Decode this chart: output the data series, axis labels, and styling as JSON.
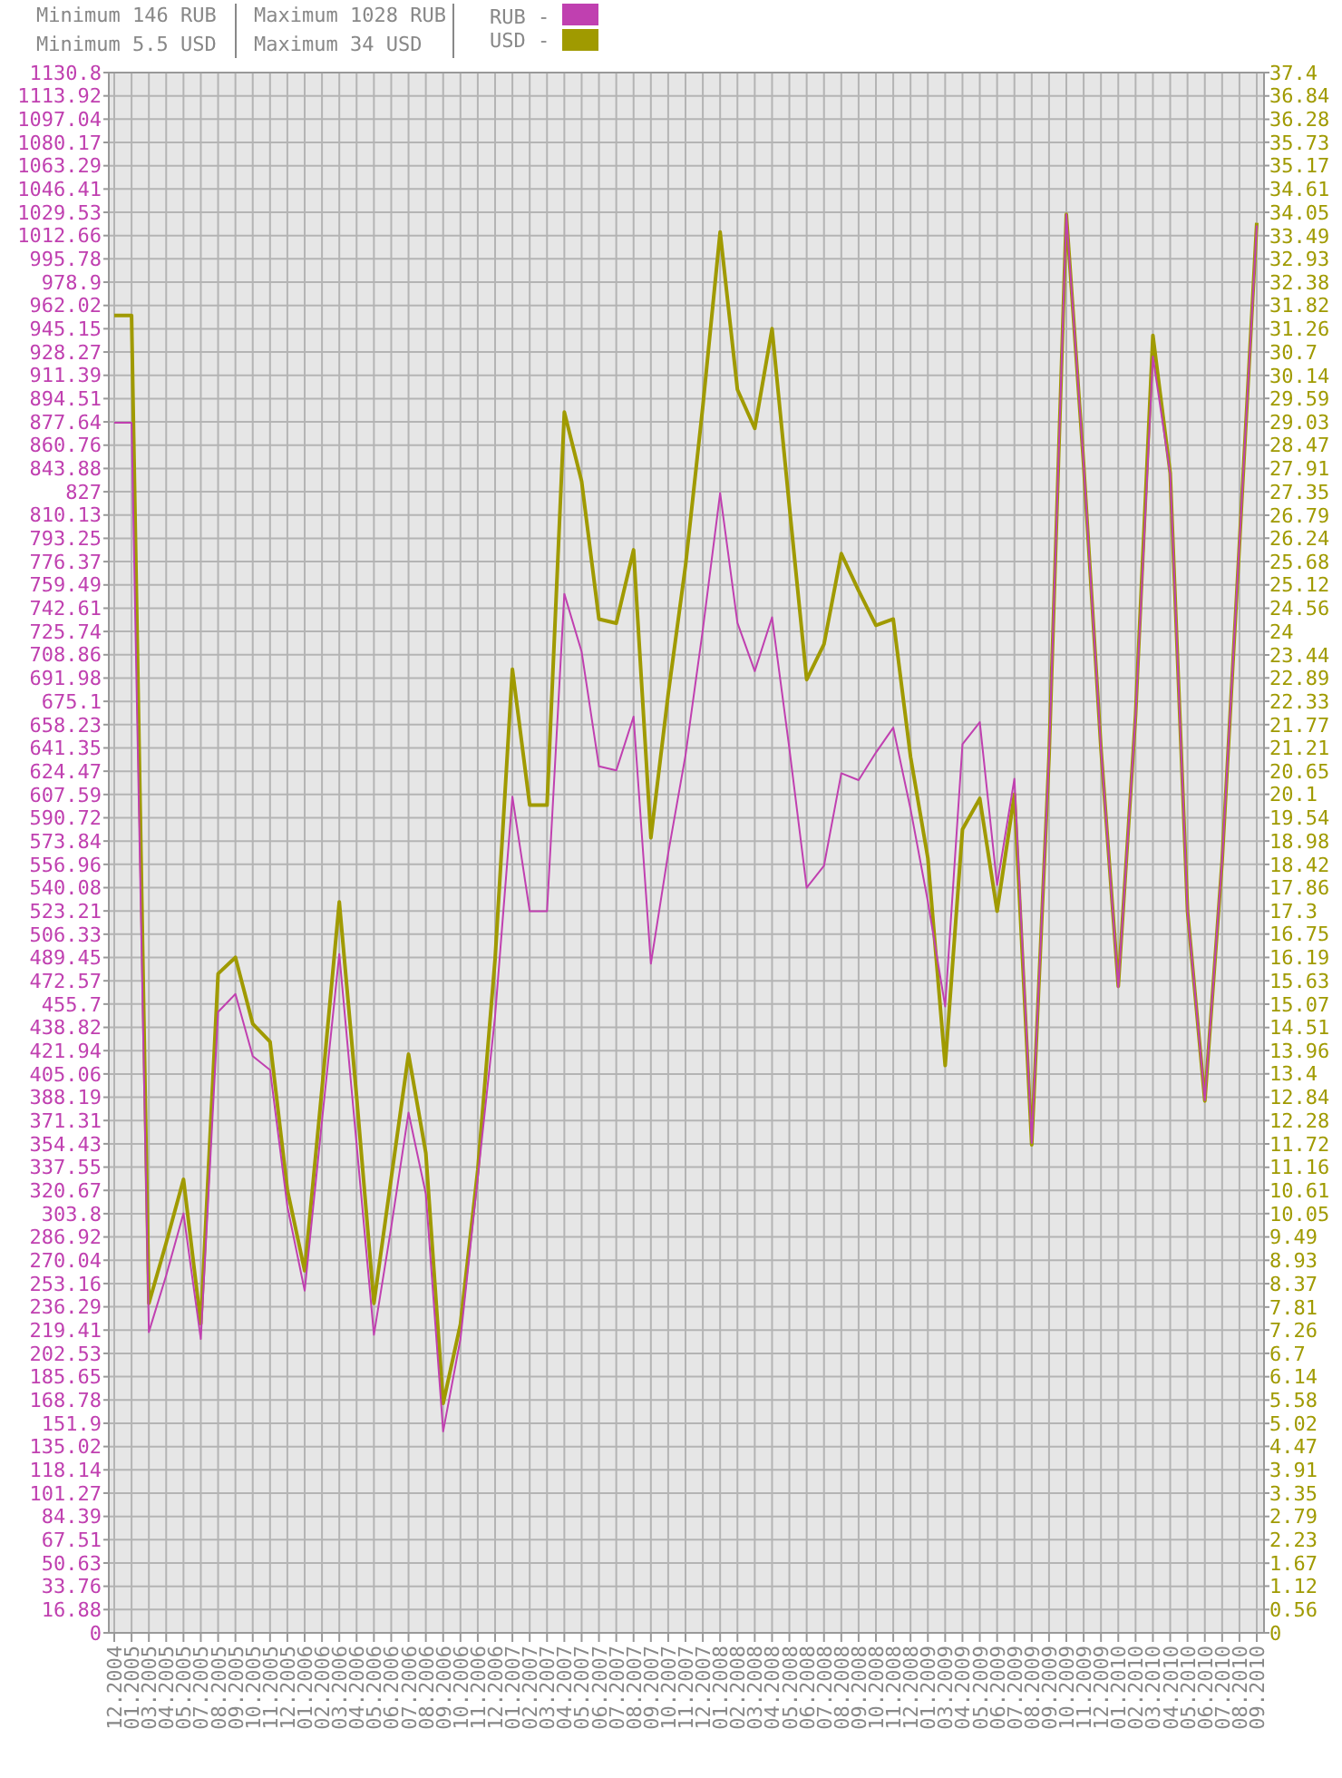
{
  "chart_data": {
    "type": "line",
    "categories": [
      "12.2004",
      "01.2005",
      "03.2005",
      "04.2005",
      "05.2005",
      "07.2005",
      "08.2005",
      "09.2005",
      "10.2005",
      "11.2005",
      "12.2005",
      "01.2006",
      "02.2006",
      "03.2006",
      "04.2006",
      "05.2006",
      "06.2006",
      "07.2006",
      "08.2006",
      "09.2006",
      "10.2006",
      "11.2006",
      "12.2006",
      "01.2007",
      "02.2007",
      "03.2007",
      "04.2007",
      "05.2007",
      "06.2007",
      "07.2007",
      "08.2007",
      "09.2007",
      "10.2007",
      "11.2007",
      "12.2007",
      "01.2008",
      "02.2008",
      "03.2008",
      "04.2008",
      "05.2008",
      "06.2008",
      "07.2008",
      "08.2008",
      "09.2008",
      "10.2008",
      "11.2008",
      "12.2008",
      "01.2009",
      "03.2009",
      "04.2009",
      "05.2009",
      "06.2009",
      "07.2009",
      "08.2009",
      "09.2009",
      "10.2009",
      "11.2009",
      "12.2009",
      "01.2010",
      "02.2010",
      "03.2010",
      "04.2010",
      "05.2010",
      "06.2010",
      "07.2010",
      "08.2010",
      "09.2010"
    ],
    "series": [
      {
        "name": "RUB -",
        "color": "#c040b0",
        "values": [
          877,
          877,
          218,
          259,
          304,
          213,
          450,
          463,
          418,
          408,
          309,
          248,
          371,
          492,
          354,
          216,
          294,
          377,
          318,
          146,
          213,
          330,
          447,
          606,
          523,
          523,
          753,
          711,
          628,
          625,
          664,
          485,
          565,
          636,
          727,
          826,
          732,
          697,
          736,
          641,
          540,
          556,
          623,
          618,
          638,
          656,
          597,
          530,
          454,
          644,
          660,
          542,
          619,
          355,
          635,
          1028,
          847,
          641,
          468,
          665,
          925,
          840,
          523,
          386,
          560,
          790,
          1020
        ]
      },
      {
        "name": "USD -",
        "color": "#a09a00",
        "axis": "y2",
        "values": [
          31.58,
          31.58,
          7.9,
          9.35,
          10.87,
          7.41,
          15.8,
          16.19,
          14.6,
          14.17,
          10.62,
          8.68,
          13.04,
          17.52,
          12.85,
          7.9,
          10.9,
          13.87,
          11.5,
          5.5,
          7.4,
          11.1,
          16.15,
          23.1,
          19.84,
          19.84,
          29.26,
          27.6,
          24.3,
          24.2,
          25.96,
          19.06,
          22.5,
          25.58,
          29.4,
          33.58,
          29.8,
          28.87,
          31.26,
          27.0,
          22.85,
          23.7,
          25.87,
          24.98,
          24.15,
          24.3,
          21.0,
          18.57,
          13.6,
          19.26,
          20.0,
          17.3,
          20.1,
          11.7,
          21.0,
          34,
          28.0,
          21.2,
          15.5,
          22.0,
          31.1,
          27.8,
          17.3,
          12.75,
          18.5,
          26.1,
          33.8
        ]
      }
    ],
    "ylim": [
      0,
      1130.8
    ],
    "yticks": [
      0,
      16.88,
      33.76,
      50.63,
      67.51,
      84.39,
      101.27,
      118.14,
      135.02,
      151.9,
      168.78,
      185.65,
      202.53,
      219.41,
      236.29,
      253.16,
      270.04,
      286.92,
      303.8,
      320.67,
      337.55,
      354.43,
      371.31,
      388.19,
      405.06,
      421.94,
      438.82,
      455.7,
      472.57,
      489.45,
      506.33,
      523.21,
      540.08,
      556.96,
      573.84,
      590.72,
      607.59,
      624.47,
      641.35,
      658.23,
      675.1,
      691.98,
      708.86,
      725.74,
      742.61,
      759.49,
      776.37,
      793.25,
      810.13,
      827,
      843.88,
      860.76,
      877.64,
      894.51,
      911.39,
      928.27,
      945.15,
      962.02,
      978.9,
      995.78,
      1012.66,
      1029.53,
      1046.41,
      1063.29,
      1080.17,
      1097.04,
      1113.92,
      1130.8
    ],
    "y2lim": [
      0,
      37.4
    ],
    "y2ticks": [
      0,
      0.56,
      1.12,
      1.67,
      2.23,
      2.79,
      3.35,
      3.91,
      4.47,
      5.02,
      5.58,
      6.14,
      6.7,
      7.26,
      7.81,
      8.37,
      8.93,
      9.49,
      10.05,
      10.61,
      11.16,
      11.72,
      12.28,
      12.84,
      13.4,
      13.96,
      14.51,
      15.07,
      15.63,
      16.19,
      16.75,
      17.3,
      17.86,
      18.42,
      18.98,
      19.54,
      20.1,
      20.65,
      21.21,
      21.77,
      22.33,
      22.89,
      23.44,
      24,
      24.56,
      25.12,
      25.68,
      26.24,
      26.79,
      27.35,
      27.91,
      28.47,
      29.03,
      29.59,
      30.14,
      30.7,
      31.26,
      31.82,
      32.38,
      32.93,
      33.49,
      34.05,
      34.61,
      35.17,
      35.73,
      36.28,
      36.84,
      37.4
    ],
    "annotations": [
      "Minimum 146 RUB",
      "Minimum 5.5 USD",
      "Maximum 1028 RUB",
      "Maximum 34 USD"
    ],
    "grid": true,
    "legend": "top",
    "marker": "none",
    "line_style": "solid"
  }
}
